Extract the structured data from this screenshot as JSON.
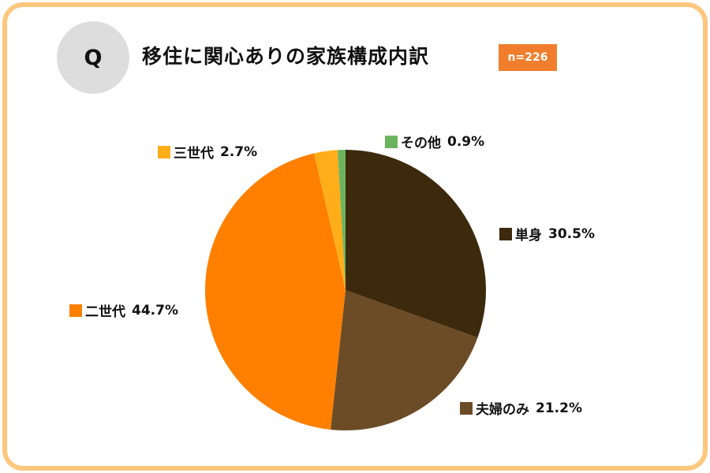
{
  "header": {
    "q_label": "Q",
    "title": "移住に関心ありの家族構成内訳",
    "sample": "n=226"
  },
  "chart_data": {
    "type": "pie",
    "title": "移住に関心ありの家族構成内訳",
    "slices": [
      {
        "label": "単身",
        "value": 30.5,
        "value_label": "30.5%",
        "color": "#3d2a0d"
      },
      {
        "label": "夫婦のみ",
        "value": 21.2,
        "value_label": "21.2%",
        "color": "#6b4c26"
      },
      {
        "label": "二世代",
        "value": 44.7,
        "value_label": "44.7%",
        "color": "#ff8000"
      },
      {
        "label": "三世代",
        "value": 2.7,
        "value_label": "2.7%",
        "color": "#ffae1a"
      },
      {
        "label": "その他",
        "value": 0.9,
        "value_label": "0.9%",
        "color": "#6db35f"
      }
    ]
  }
}
